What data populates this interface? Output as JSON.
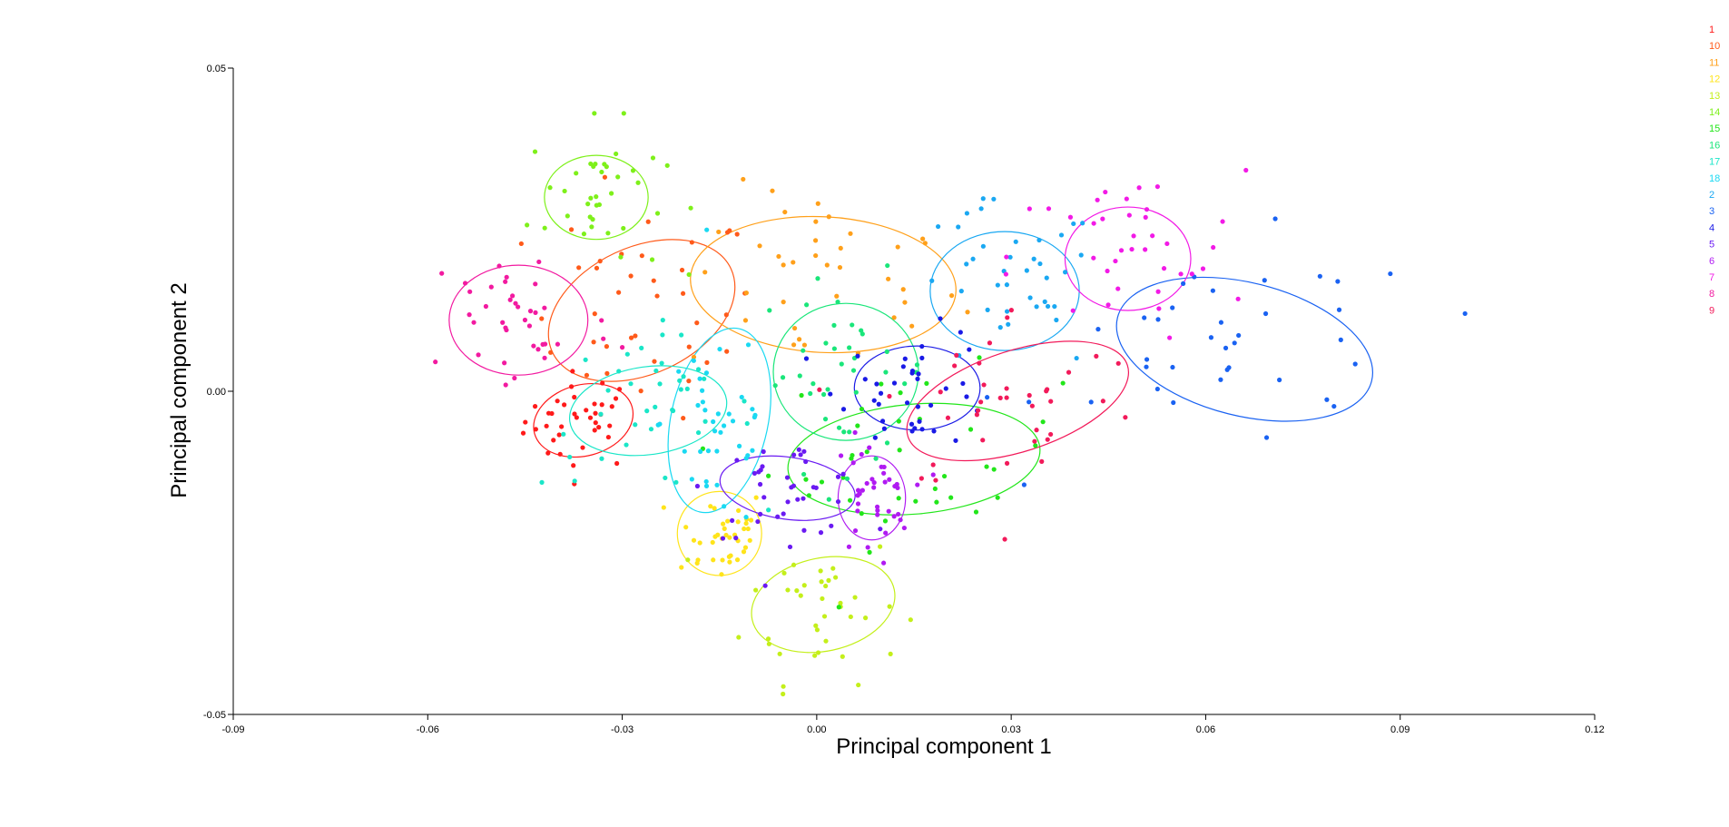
{
  "chart_data": {
    "type": "scatter",
    "title": "",
    "xlabel": "Principal component 1",
    "ylabel": "Principal component 2",
    "xlim": [
      -0.09,
      0.12
    ],
    "ylim": [
      -0.05,
      0.05
    ],
    "x_ticks": [
      "-0.09",
      "-0.06",
      "-0.03",
      "0.00",
      "0.03",
      "0.06",
      "0.09",
      "0.12"
    ],
    "y_ticks": [
      "-0.05",
      "0.00",
      "0.05"
    ],
    "grid": false,
    "legend_position": "top-right",
    "ellipses": true,
    "series": [
      {
        "name": "1",
        "color": "#ff1a1a",
        "center": [
          -0.036,
          -0.0045
        ],
        "spread": [
          0.006,
          0.005
        ],
        "ellipse": {
          "rx": 0.0078,
          "ry": 0.0055,
          "angle_deg": -15
        }
      },
      {
        "name": "10",
        "color": "#ff5a1a",
        "center": [
          -0.027,
          0.0125
        ],
        "spread": [
          0.012,
          0.011
        ],
        "ellipse": {
          "rx": 0.0152,
          "ry": 0.0098,
          "angle_deg": -25
        }
      },
      {
        "name": "11",
        "color": "#ffa01a",
        "center": [
          0.001,
          0.0165
        ],
        "spread": [
          0.014,
          0.01
        ],
        "ellipse": {
          "rx": 0.0205,
          "ry": 0.0105,
          "angle_deg": 3
        }
      },
      {
        "name": "12",
        "color": "#ffe41a",
        "center": [
          -0.015,
          -0.022
        ],
        "spread": [
          0.005,
          0.005
        ],
        "ellipse": {
          "rx": 0.0065,
          "ry": 0.0065,
          "angle_deg": 0
        }
      },
      {
        "name": "13",
        "color": "#c4ef1a",
        "center": [
          0.001,
          -0.033
        ],
        "spread": [
          0.008,
          0.008
        ],
        "ellipse": {
          "rx": 0.0112,
          "ry": 0.0072,
          "angle_deg": -12
        }
      },
      {
        "name": "14",
        "color": "#7ef01a",
        "center": [
          -0.034,
          0.03
        ],
        "spread": [
          0.007,
          0.008
        ],
        "ellipse": {
          "rx": 0.008,
          "ry": 0.0065,
          "angle_deg": 0
        }
      },
      {
        "name": "15",
        "color": "#22e61a",
        "center": [
          0.015,
          -0.0105
        ],
        "spread": [
          0.015,
          0.009
        ],
        "ellipse": {
          "rx": 0.0195,
          "ry": 0.0085,
          "angle_deg": -5
        }
      },
      {
        "name": "16",
        "color": "#1ae67a",
        "center": [
          0.0045,
          0.003
        ],
        "spread": [
          0.009,
          0.01
        ],
        "ellipse": {
          "rx": 0.0112,
          "ry": 0.0106,
          "angle_deg": 0
        }
      },
      {
        "name": "17",
        "color": "#1ae6c8",
        "center": [
          -0.026,
          -0.003
        ],
        "spread": [
          0.011,
          0.008
        ],
        "ellipse": {
          "rx": 0.0122,
          "ry": 0.0068,
          "angle_deg": -8
        }
      },
      {
        "name": "18",
        "color": "#1ad9f2",
        "center": [
          -0.015,
          -0.0045
        ],
        "spread": [
          0.006,
          0.012
        ],
        "ellipse": {
          "rx": 0.0075,
          "ry": 0.0145,
          "angle_deg": 12
        }
      },
      {
        "name": "2",
        "color": "#1aa8f2",
        "center": [
          0.029,
          0.0155
        ],
        "spread": [
          0.01,
          0.009
        ],
        "ellipse": {
          "rx": 0.0115,
          "ry": 0.0092,
          "angle_deg": 0
        }
      },
      {
        "name": "3",
        "color": "#1a62f2",
        "center": [
          0.066,
          0.0065
        ],
        "spread": [
          0.02,
          0.011
        ],
        "ellipse": {
          "rx": 0.0202,
          "ry": 0.0103,
          "angle_deg": 14
        }
      },
      {
        "name": "4",
        "color": "#1a1ae6",
        "center": [
          0.0155,
          0.0005
        ],
        "spread": [
          0.008,
          0.006
        ],
        "ellipse": {
          "rx": 0.0097,
          "ry": 0.0065,
          "angle_deg": 0
        }
      },
      {
        "name": "5",
        "color": "#6a1af2",
        "center": [
          -0.0045,
          -0.015
        ],
        "spread": [
          0.008,
          0.005
        ],
        "ellipse": {
          "rx": 0.0105,
          "ry": 0.0048,
          "angle_deg": 8
        }
      },
      {
        "name": "6",
        "color": "#b01af2",
        "center": [
          0.0085,
          -0.0165
        ],
        "spread": [
          0.004,
          0.006
        ],
        "ellipse": {
          "rx": 0.0052,
          "ry": 0.0065,
          "angle_deg": 0
        }
      },
      {
        "name": "7",
        "color": "#f21ae6",
        "center": [
          0.048,
          0.0205
        ],
        "spread": [
          0.012,
          0.009
        ],
        "ellipse": {
          "rx": 0.0097,
          "ry": 0.008,
          "angle_deg": 0
        }
      },
      {
        "name": "8",
        "color": "#f21aa0",
        "center": [
          -0.046,
          0.011
        ],
        "spread": [
          0.01,
          0.009
        ],
        "ellipse": {
          "rx": 0.0107,
          "ry": 0.0085,
          "angle_deg": 0
        }
      },
      {
        "name": "9",
        "color": "#f21a5a",
        "center": [
          0.031,
          -0.0015
        ],
        "spread": [
          0.014,
          0.01
        ],
        "ellipse": {
          "rx": 0.0178,
          "ry": 0.0078,
          "angle_deg": -18
        }
      }
    ]
  }
}
